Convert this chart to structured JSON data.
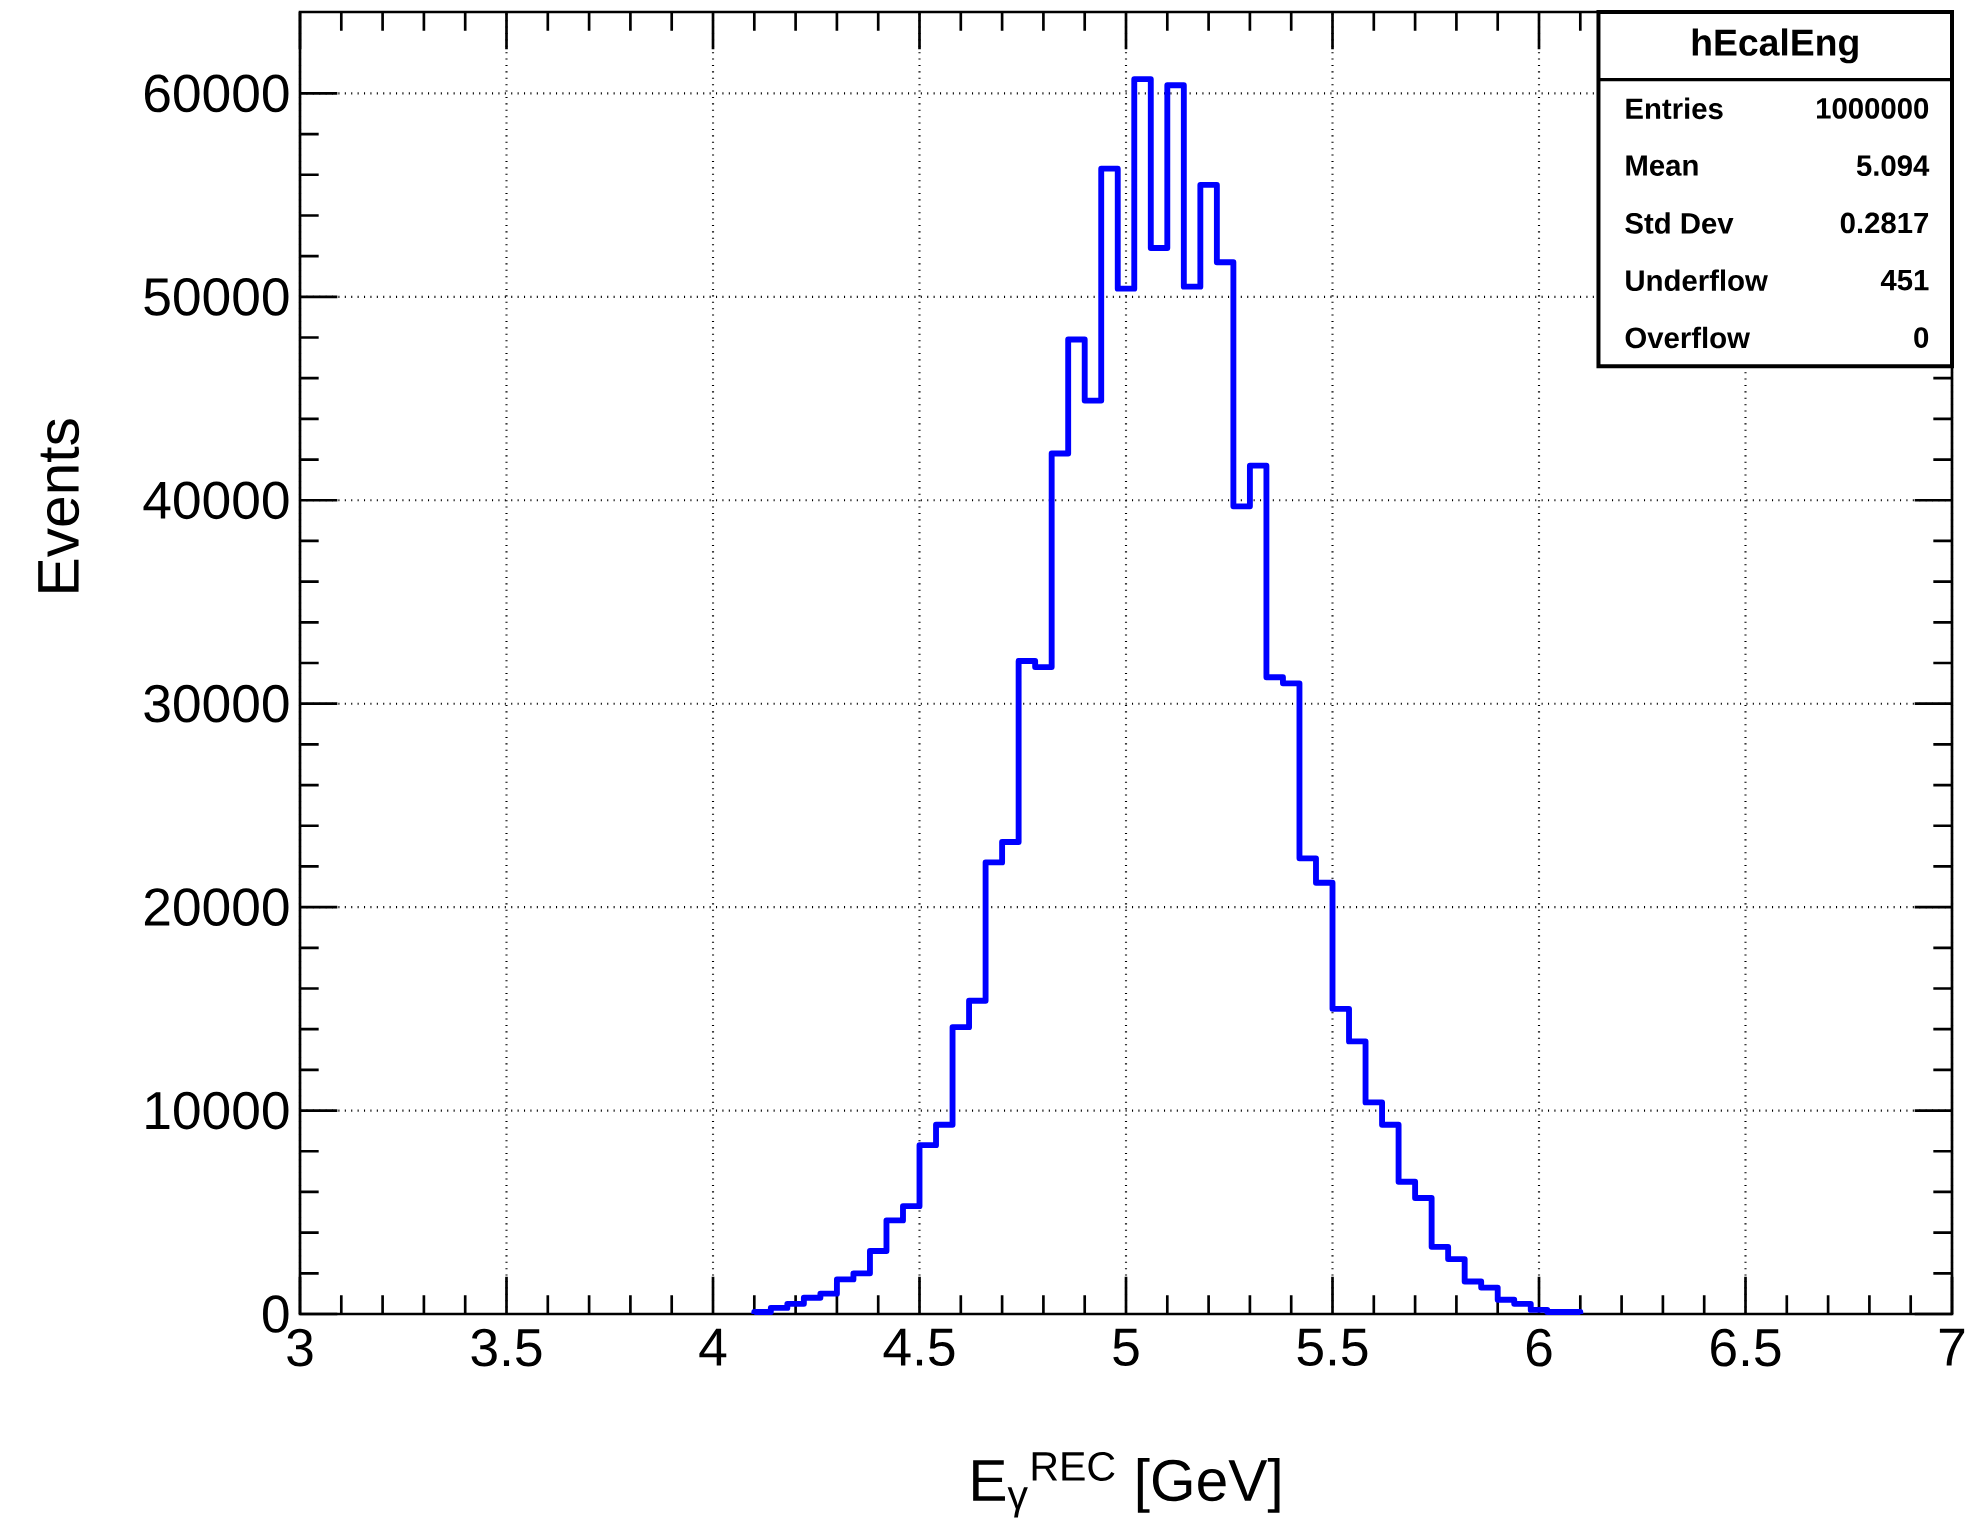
{
  "chart_data": {
    "type": "histogram",
    "title": "hEcalEng",
    "xlabel": "E$_{γ}$$^{REC}$ [GeV]",
    "ylabel": "Events",
    "bins": [
      4.1,
      4.14,
      4.18,
      4.22,
      4.26,
      4.3,
      4.34,
      4.38,
      4.42,
      4.46,
      4.5,
      4.54,
      4.58,
      4.62,
      4.66,
      4.7,
      4.74,
      4.78,
      4.82,
      4.86,
      4.9,
      4.94,
      4.98,
      5.02,
      5.06,
      5.1,
      5.14,
      5.18,
      5.22,
      5.26,
      5.3,
      5.34,
      5.38,
      5.42,
      5.46,
      5.5,
      5.54,
      5.58,
      5.62,
      5.66,
      5.7,
      5.74,
      5.78,
      5.82,
      5.86,
      5.9,
      5.94,
      5.98,
      6.02,
      6.06,
      6.1
    ],
    "values": [
      100,
      300,
      500,
      800,
      1000,
      1700,
      2000,
      3100,
      4600,
      5300,
      8300,
      9300,
      14100,
      15400,
      22200,
      23200,
      32100,
      31800,
      42300,
      47900,
      44900,
      56300,
      50400,
      60700,
      52400,
      60400,
      50500,
      55500,
      51700,
      39700,
      41700,
      31300,
      31000,
      22400,
      21200,
      15000,
      13400,
      10400,
      9300,
      6500,
      5700,
      3300,
      2700,
      1600,
      1300,
      700,
      500,
      200,
      100,
      100
    ],
    "color": "#0000ff",
    "annotations": [
      "Entries",
      "1000000",
      "Mean",
      "5.094",
      "Std Dev",
      "0.2817",
      "Underflow",
      "451",
      "Overflow",
      "0"
    ],
    "xlim": [
      3,
      7
    ],
    "ylim": [
      0,
      64000
    ],
    "xticks": [
      3,
      3.5,
      4,
      4.5,
      5,
      5.5,
      6,
      6.5,
      7
    ],
    "yticks": [
      0,
      10000,
      20000,
      30000,
      40000,
      50000,
      60000
    ],
    "grid": true,
    "line_style": "solid"
  }
}
